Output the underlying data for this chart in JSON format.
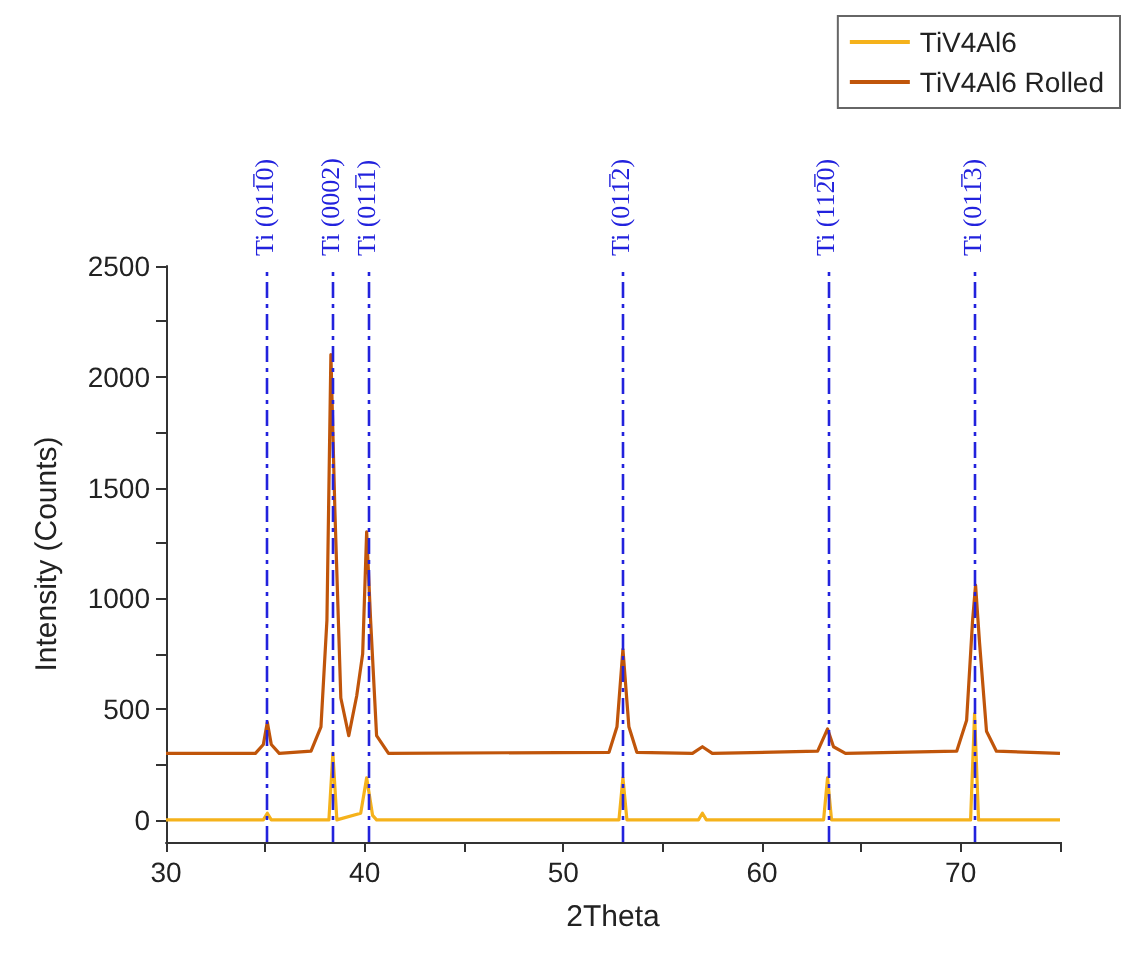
{
  "chart_data": {
    "type": "line",
    "xlabel": "2Theta",
    "ylabel": "Intensity (Counts)",
    "xlim": [
      30,
      75
    ],
    "xticks": [
      30,
      {
        "value": 35,
        "label": null
      },
      40,
      {
        "value": 45,
        "label": null
      },
      50,
      {
        "value": 55,
        "label": null
      },
      60,
      {
        "value": 65,
        "label": null
      },
      70,
      {
        "value": 75,
        "label": null
      }
    ],
    "ylim": [
      -100,
      2500
    ],
    "yticks": [
      0,
      {
        "value": 250,
        "label": null
      },
      500,
      {
        "value": 750,
        "label": null
      },
      1000,
      {
        "value": 1250,
        "label": null
      },
      1500,
      {
        "value": 1750,
        "label": null
      },
      2000,
      {
        "value": 2250,
        "label": null
      },
      2500
    ],
    "grid": false,
    "legend": "top right",
    "marker": "none",
    "line_style": "solid",
    "series": [
      {
        "name": "TiV4Al6",
        "color": "#f5b21b",
        "x": [
          30,
          34.9,
          35.1,
          35.3,
          38.2,
          38.4,
          38.6,
          39.8,
          40.1,
          40.4,
          40.6,
          52.8,
          53.0,
          53.2,
          56.8,
          57.0,
          57.2,
          63.1,
          63.3,
          63.5,
          70.5,
          70.7,
          70.9,
          75
        ],
        "values": [
          0,
          0,
          30,
          0,
          0,
          300,
          0,
          30,
          190,
          20,
          0,
          0,
          190,
          0,
          0,
          30,
          0,
          0,
          190,
          0,
          0,
          480,
          0,
          0
        ]
      },
      {
        "name": "TiV4Al6 Rolled",
        "color": "#c0550a",
        "x": [
          30,
          34.5,
          34.9,
          35.1,
          35.3,
          35.7,
          37.3,
          37.8,
          38.1,
          38.3,
          38.5,
          38.8,
          39.2,
          39.6,
          39.9,
          40.1,
          40.3,
          40.6,
          41.2,
          52.3,
          52.7,
          53.0,
          53.3,
          53.7,
          56.5,
          57.0,
          57.5,
          62.8,
          63.2,
          63.3,
          63.6,
          64.2,
          69.8,
          70.3,
          70.6,
          70.75,
          70.95,
          71.3,
          71.8,
          75
        ],
        "values": [
          300,
          300,
          340,
          440,
          340,
          300,
          310,
          420,
          900,
          2100,
          1400,
          550,
          380,
          560,
          750,
          1300,
          900,
          380,
          300,
          305,
          420,
          770,
          420,
          305,
          300,
          330,
          300,
          310,
          390,
          410,
          330,
          300,
          310,
          450,
          900,
          1060,
          800,
          400,
          310,
          300
        ]
      }
    ],
    "ref_lines": [
      {
        "axis": "x",
        "value": 35.1,
        "label": "Ti (011̅0)",
        "color": "#2222dd",
        "line_style": "dashdot"
      },
      {
        "axis": "x",
        "value": 38.4,
        "label": "Ti (0002)",
        "color": "#2222dd",
        "line_style": "dashdot"
      },
      {
        "axis": "x",
        "value": 40.2,
        "label": "Ti (011̅1)",
        "color": "#2222dd",
        "line_style": "dashdot"
      },
      {
        "axis": "x",
        "value": 53.0,
        "label": "Ti (011̅2)",
        "color": "#2222dd",
        "line_style": "dashdot"
      },
      {
        "axis": "x",
        "value": 63.3,
        "label": "Ti (112̅0)",
        "color": "#2222dd",
        "line_style": "dashdot"
      },
      {
        "axis": "x",
        "value": 70.7,
        "label": "Ti (011̅3)",
        "color": "#2222dd",
        "line_style": "dashdot"
      }
    ]
  }
}
